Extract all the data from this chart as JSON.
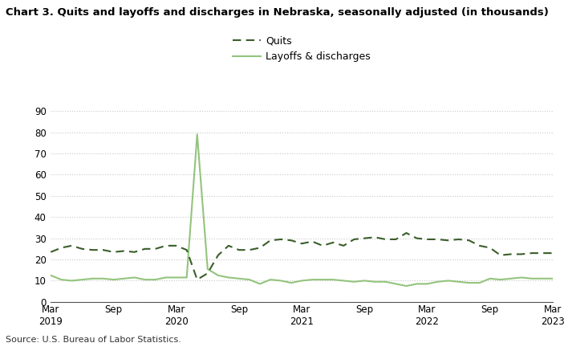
{
  "title": "Chart 3. Quits and layoffs and discharges in Nebraska, seasonally adjusted (in thousands)",
  "source": "Source: U.S. Bureau of Labor Statistics.",
  "quits_color": "#3a5e2a",
  "layoffs_color": "#93c47d",
  "background_color": "#ffffff",
  "grid_color": "#c8c8c8",
  "ylim": [
    0,
    90
  ],
  "yticks": [
    0,
    10,
    20,
    30,
    40,
    50,
    60,
    70,
    80,
    90
  ],
  "xtick_labels": [
    "Mar\n2019",
    "Sep",
    "Mar\n2020",
    "Sep",
    "Mar\n2021",
    "Sep",
    "Mar\n2022",
    "Sep",
    "Mar\n2023"
  ],
  "quits": [
    23.5,
    25.5,
    26.5,
    25.0,
    24.5,
    24.5,
    23.5,
    24.0,
    23.5,
    25.0,
    25.0,
    26.5,
    26.5,
    24.5,
    10.5,
    13.5,
    22.0,
    26.5,
    24.5,
    24.5,
    25.5,
    29.0,
    29.5,
    29.0,
    27.5,
    28.5,
    26.5,
    28.0,
    26.5,
    29.5,
    30.0,
    30.5,
    29.5,
    29.5,
    32.5,
    30.0,
    29.5,
    29.5,
    29.0,
    29.5,
    29.0,
    26.5,
    25.5,
    22.0,
    22.5,
    22.5,
    23.0,
    23.0,
    23.0
  ],
  "layoffs": [
    12.5,
    10.5,
    10.0,
    10.5,
    11.0,
    11.0,
    10.5,
    11.0,
    11.5,
    10.5,
    10.5,
    11.5,
    11.5,
    11.5,
    79.0,
    15.5,
    12.5,
    11.5,
    11.0,
    10.5,
    8.5,
    10.5,
    10.0,
    9.0,
    10.0,
    10.5,
    10.5,
    10.5,
    10.0,
    9.5,
    10.0,
    9.5,
    9.5,
    8.5,
    7.5,
    8.5,
    8.5,
    9.5,
    10.0,
    9.5,
    9.0,
    9.0,
    11.0,
    10.5,
    11.0,
    11.5,
    11.0,
    11.0,
    11.0
  ],
  "n_points": 49,
  "xtick_positions": [
    0,
    6,
    12,
    18,
    24,
    30,
    36,
    42,
    48
  ]
}
